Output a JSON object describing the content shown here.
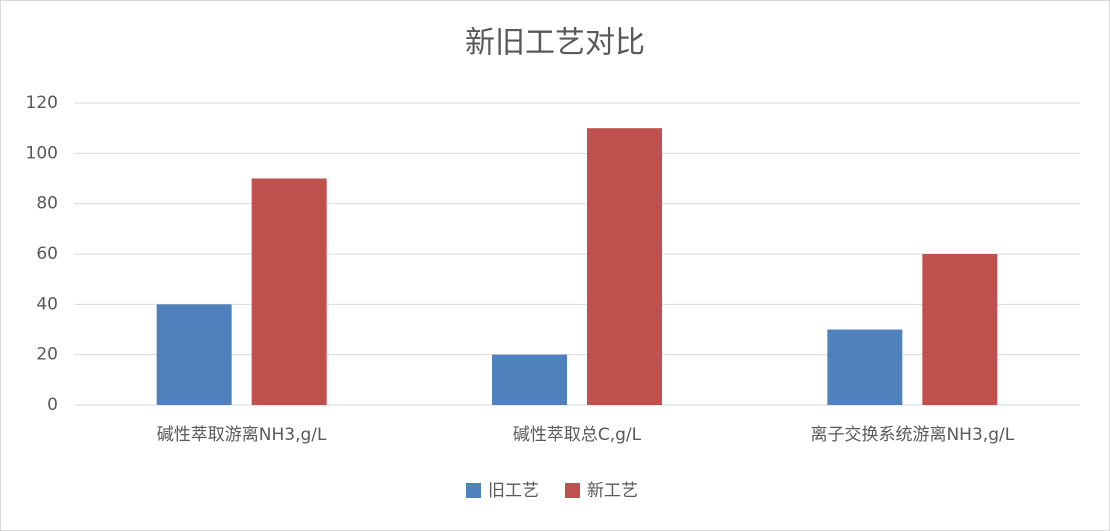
{
  "chart_data": {
    "type": "bar",
    "title": "新旧工艺对比",
    "categories": [
      "碱性萃取游离NH3,g/L",
      "碱性萃取总C,g/L",
      "离子交换系统游离NH3,g/L"
    ],
    "series": [
      {
        "name": "旧工艺",
        "color": "#4f81bd",
        "values": [
          40,
          20,
          30
        ]
      },
      {
        "name": "新工艺",
        "color": "#c0504d",
        "values": [
          90,
          110,
          60
        ]
      }
    ],
    "ylim": [
      0,
      120
    ],
    "yticks": [
      0,
      20,
      40,
      60,
      80,
      100,
      120
    ],
    "grid": true,
    "legend": "bottom"
  }
}
